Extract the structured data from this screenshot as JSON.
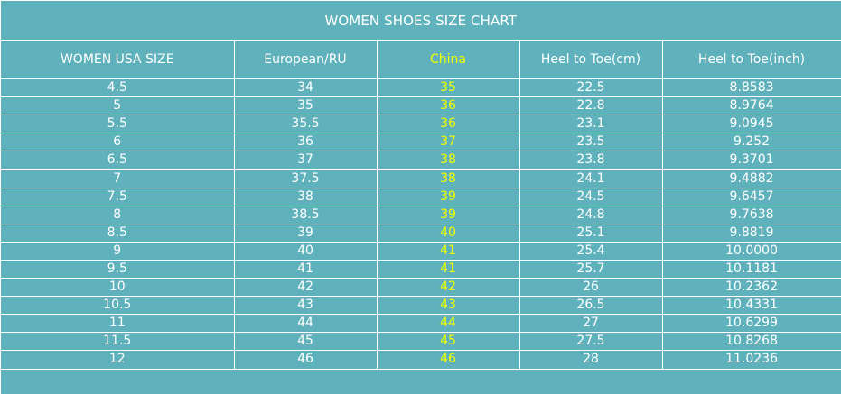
{
  "title": "WOMEN SHOES SIZE CHART",
  "accent_color": "#f2ff00",
  "background_color": "#5fb2bb",
  "columns": [
    "WOMEN USA SIZE",
    "European/RU",
    "China",
    "Heel to Toe(cm)",
    "Heel to Toe(inch)"
  ],
  "highlight_column": "China",
  "rows": [
    [
      "4.5",
      "34",
      "35",
      "22.5",
      "8.8583"
    ],
    [
      "5",
      "35",
      "36",
      "22.8",
      "8.9764"
    ],
    [
      "5.5",
      "35.5",
      "36",
      "23.1",
      "9.0945"
    ],
    [
      "6",
      "36",
      "37",
      "23.5",
      "9.252"
    ],
    [
      "6.5",
      "37",
      "38",
      "23.8",
      "9.3701"
    ],
    [
      "7",
      "37.5",
      "38",
      "24.1",
      "9.4882"
    ],
    [
      "7.5",
      "38",
      "39",
      "24.5",
      "9.6457"
    ],
    [
      "8",
      "38.5",
      "39",
      "24.8",
      "9.7638"
    ],
    [
      "8.5",
      "39",
      "40",
      "25.1",
      "9.8819"
    ],
    [
      "9",
      "40",
      "41",
      "25.4",
      "10.0000"
    ],
    [
      "9.5",
      "41",
      "41",
      "25.7",
      "10.1181"
    ],
    [
      "10",
      "42",
      "42",
      "26",
      "10.2362"
    ],
    [
      "10.5",
      "43",
      "43",
      "26.5",
      "10.4331"
    ],
    [
      "11",
      "44",
      "44",
      "27",
      "10.6299"
    ],
    [
      "11.5",
      "45",
      "45",
      "27.5",
      "10.8268"
    ],
    [
      "12",
      "46",
      "46",
      "28",
      "11.0236"
    ]
  ]
}
